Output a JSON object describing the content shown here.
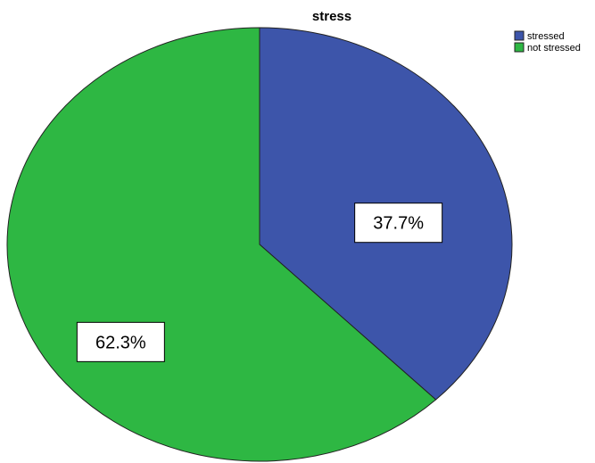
{
  "chart_data": {
    "type": "pie",
    "title": "stress",
    "legend_position": "top-right",
    "slices": [
      {
        "name": "stressed",
        "value": 37.7,
        "label": "37.7%",
        "color": "#3d55aa"
      },
      {
        "name": "not stressed",
        "value": 62.3,
        "label": "62.3%",
        "color": "#2eb743"
      }
    ]
  }
}
